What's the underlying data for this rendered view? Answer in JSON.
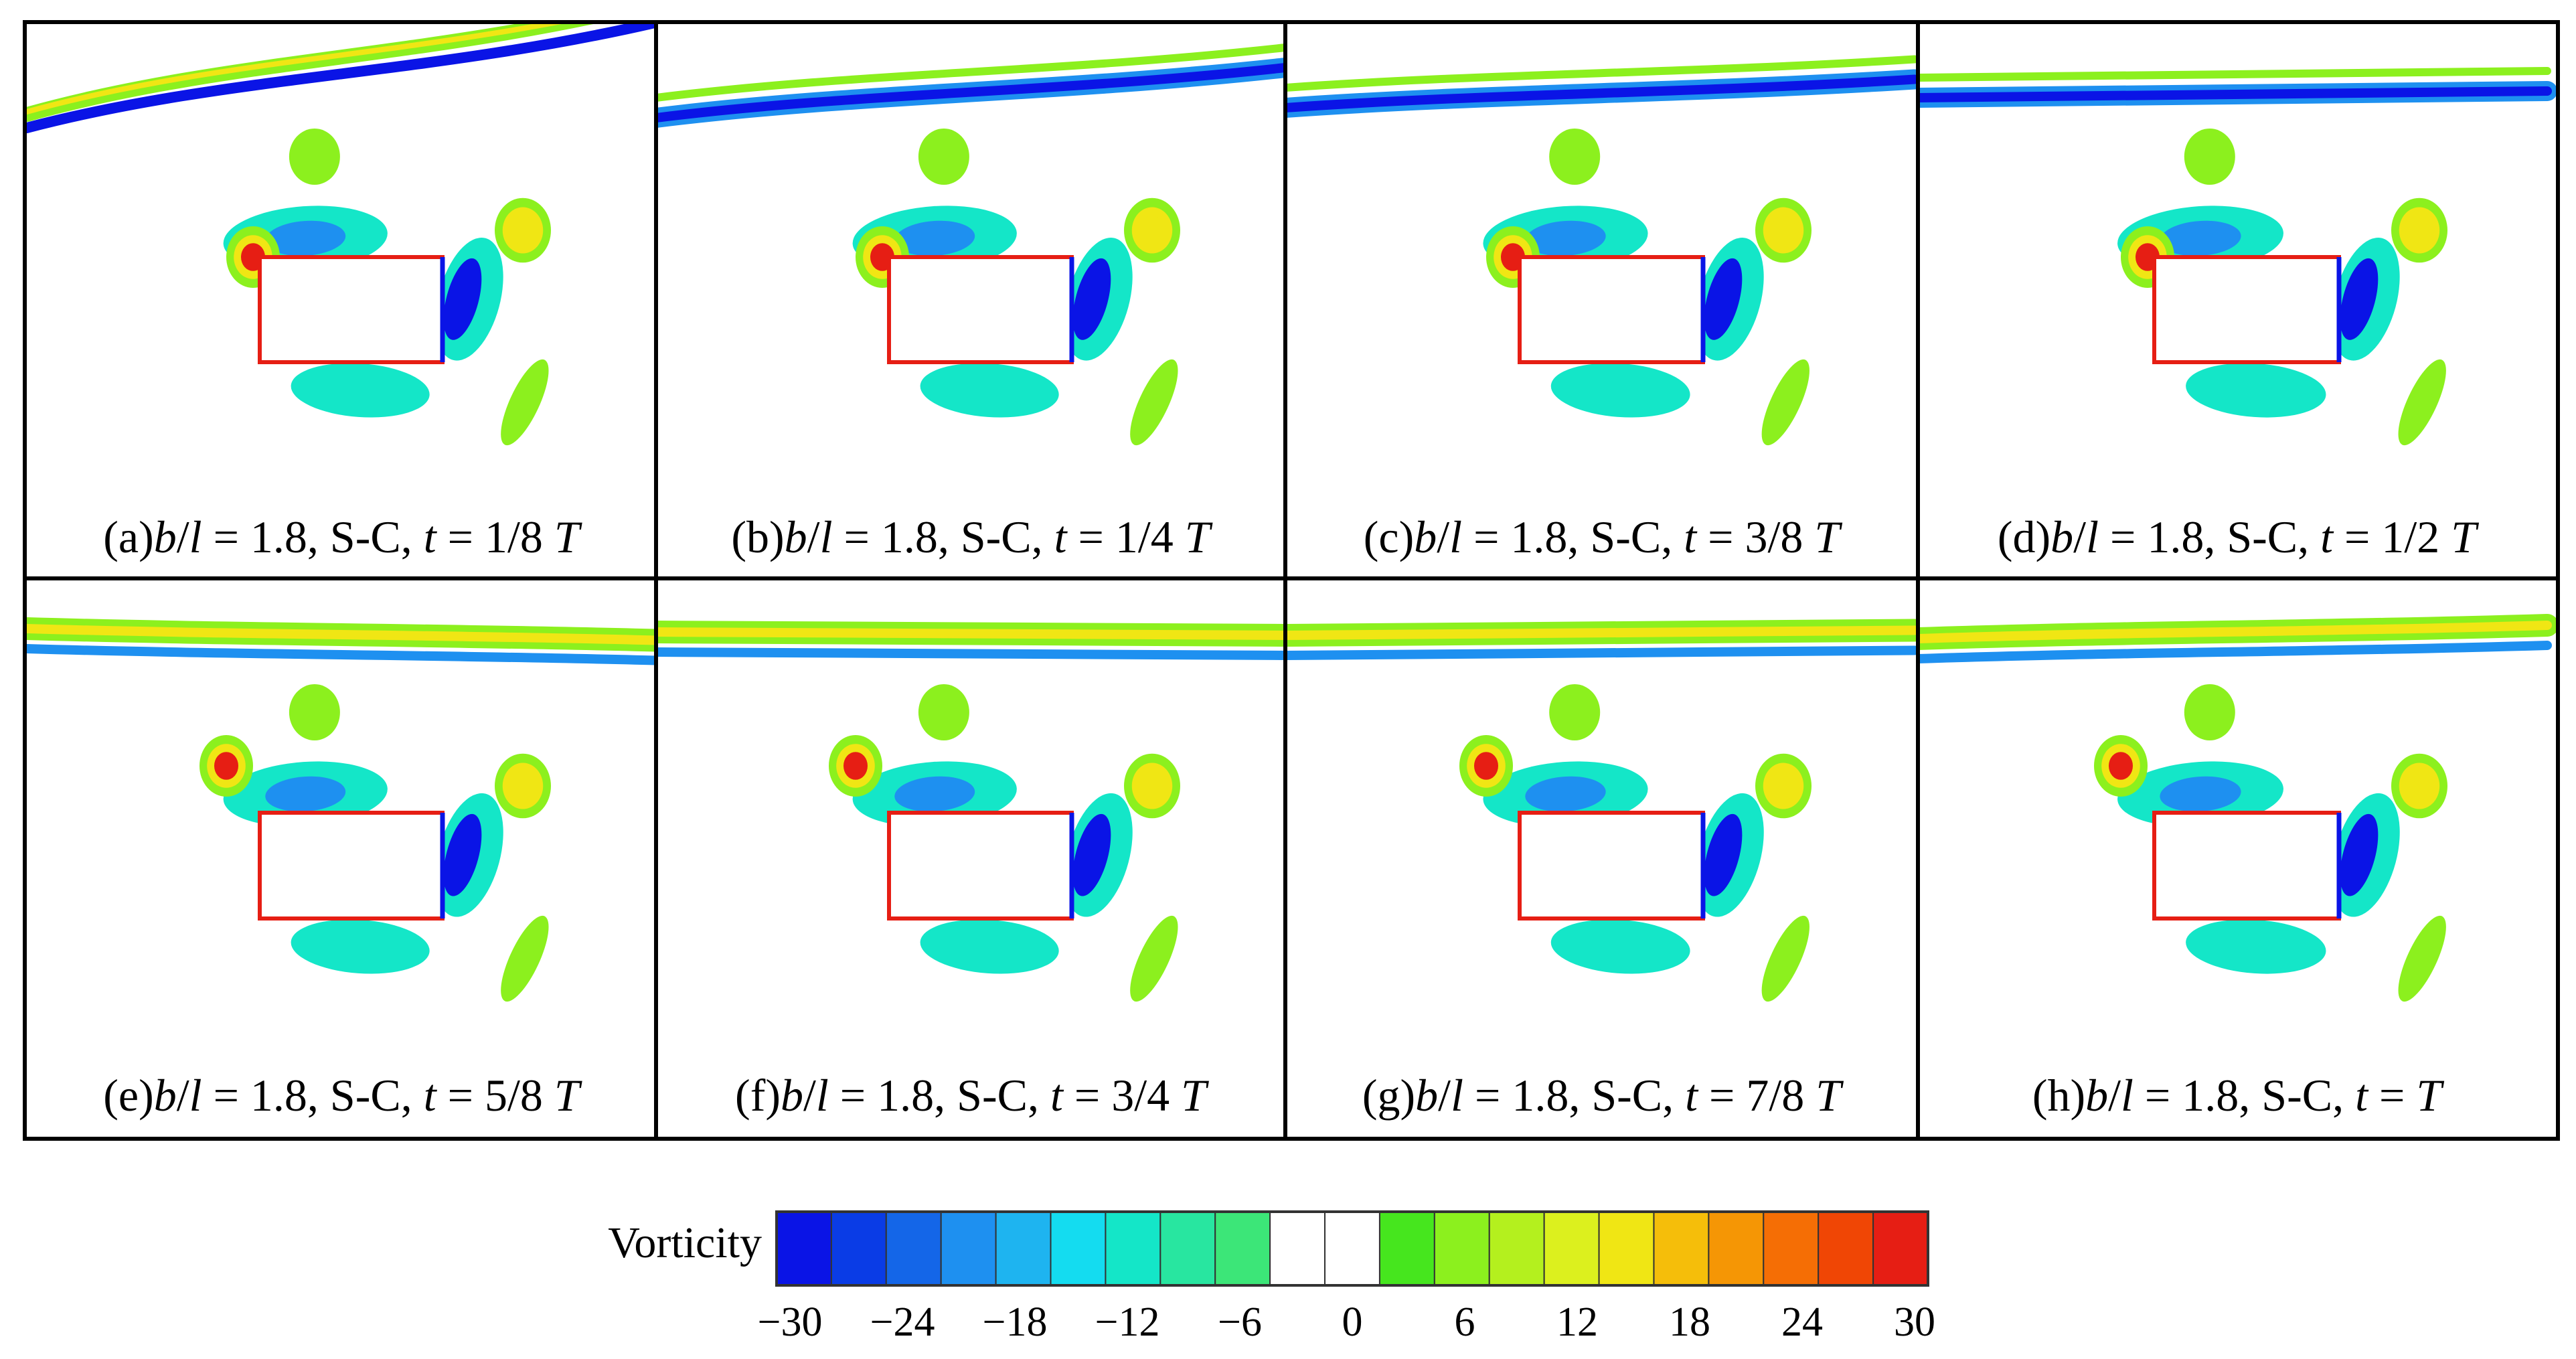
{
  "panels": [
    {
      "caption": {
        "tag": "(a)",
        "b": "b",
        "l": "l",
        "rest": " = 1.8, S-C, ",
        "t": "t",
        "frac": " = 1/8 ",
        "T": "T"
      },
      "phase": 0.125
    },
    {
      "caption": {
        "tag": "(b)",
        "b": "b",
        "l": "l",
        "rest": " = 1.8, S-C, ",
        "t": "t",
        "frac": " = 1/4 ",
        "T": "T"
      },
      "phase": 0.25
    },
    {
      "caption": {
        "tag": "(c)",
        "b": "b",
        "l": "l",
        "rest": " = 1.8, S-C, ",
        "t": "t",
        "frac": " = 3/8 ",
        "T": "T"
      },
      "phase": 0.375
    },
    {
      "caption": {
        "tag": "(d)",
        "b": "b",
        "l": "l",
        "rest": " = 1.8, S-C, ",
        "t": "t",
        "frac": " = 1/2 ",
        "T": "T"
      },
      "phase": 0.5
    },
    {
      "caption": {
        "tag": "(e)",
        "b": "b",
        "l": "l",
        "rest": " = 1.8, S-C, ",
        "t": "t",
        "frac": " = 5/8 ",
        "T": "T"
      },
      "phase": 0.625
    },
    {
      "caption": {
        "tag": "(f)",
        "b": "b",
        "l": "l",
        "rest": " = 1.8, S-C, ",
        "t": "t",
        "frac": " = 3/4 ",
        "T": "T"
      },
      "phase": 0.75
    },
    {
      "caption": {
        "tag": "(g)",
        "b": "b",
        "l": "l",
        "rest": " = 1.8, S-C, ",
        "t": "t",
        "frac": " = 7/8 ",
        "T": "T"
      },
      "phase": 0.875
    },
    {
      "caption": {
        "tag": "(h)",
        "b": "b",
        "l": "l",
        "rest": " = 1.8, S-C, ",
        "t": "t",
        "frac": " = ",
        "T": "T"
      },
      "phase": 1.0
    }
  ],
  "colorbar": {
    "label": "Vorticity",
    "ticks": [
      "−30",
      "−24",
      "−18",
      "−12",
      "−6",
      "0",
      "6",
      "12",
      "18",
      "24",
      "30"
    ],
    "tick_values": [
      -30,
      -24,
      -18,
      -12,
      -6,
      0,
      6,
      12,
      18,
      24,
      30
    ],
    "colors": [
      "#0a14e6",
      "#0a3ce6",
      "#1466e8",
      "#1e90f0",
      "#1eb4f0",
      "#14dcf0",
      "#14e6c8",
      "#28e6a0",
      "#3ce678",
      "#ffffff",
      "#ffffff",
      "#46e61e",
      "#8cf01e",
      "#b4f01e",
      "#dcf01e",
      "#f0e614",
      "#f5be0a",
      "#f59605",
      "#f56e05",
      "#f04605",
      "#e61e14"
    ]
  },
  "colors": {
    "neg_strong": "#0a14e6",
    "neg_mid": "#1e90f0",
    "neg_weak": "#14e6c8",
    "pos_weak": "#8cf01e",
    "pos_mid": "#f0e614",
    "pos_strong": "#e61e14",
    "body_outline": "#e61e14"
  }
}
